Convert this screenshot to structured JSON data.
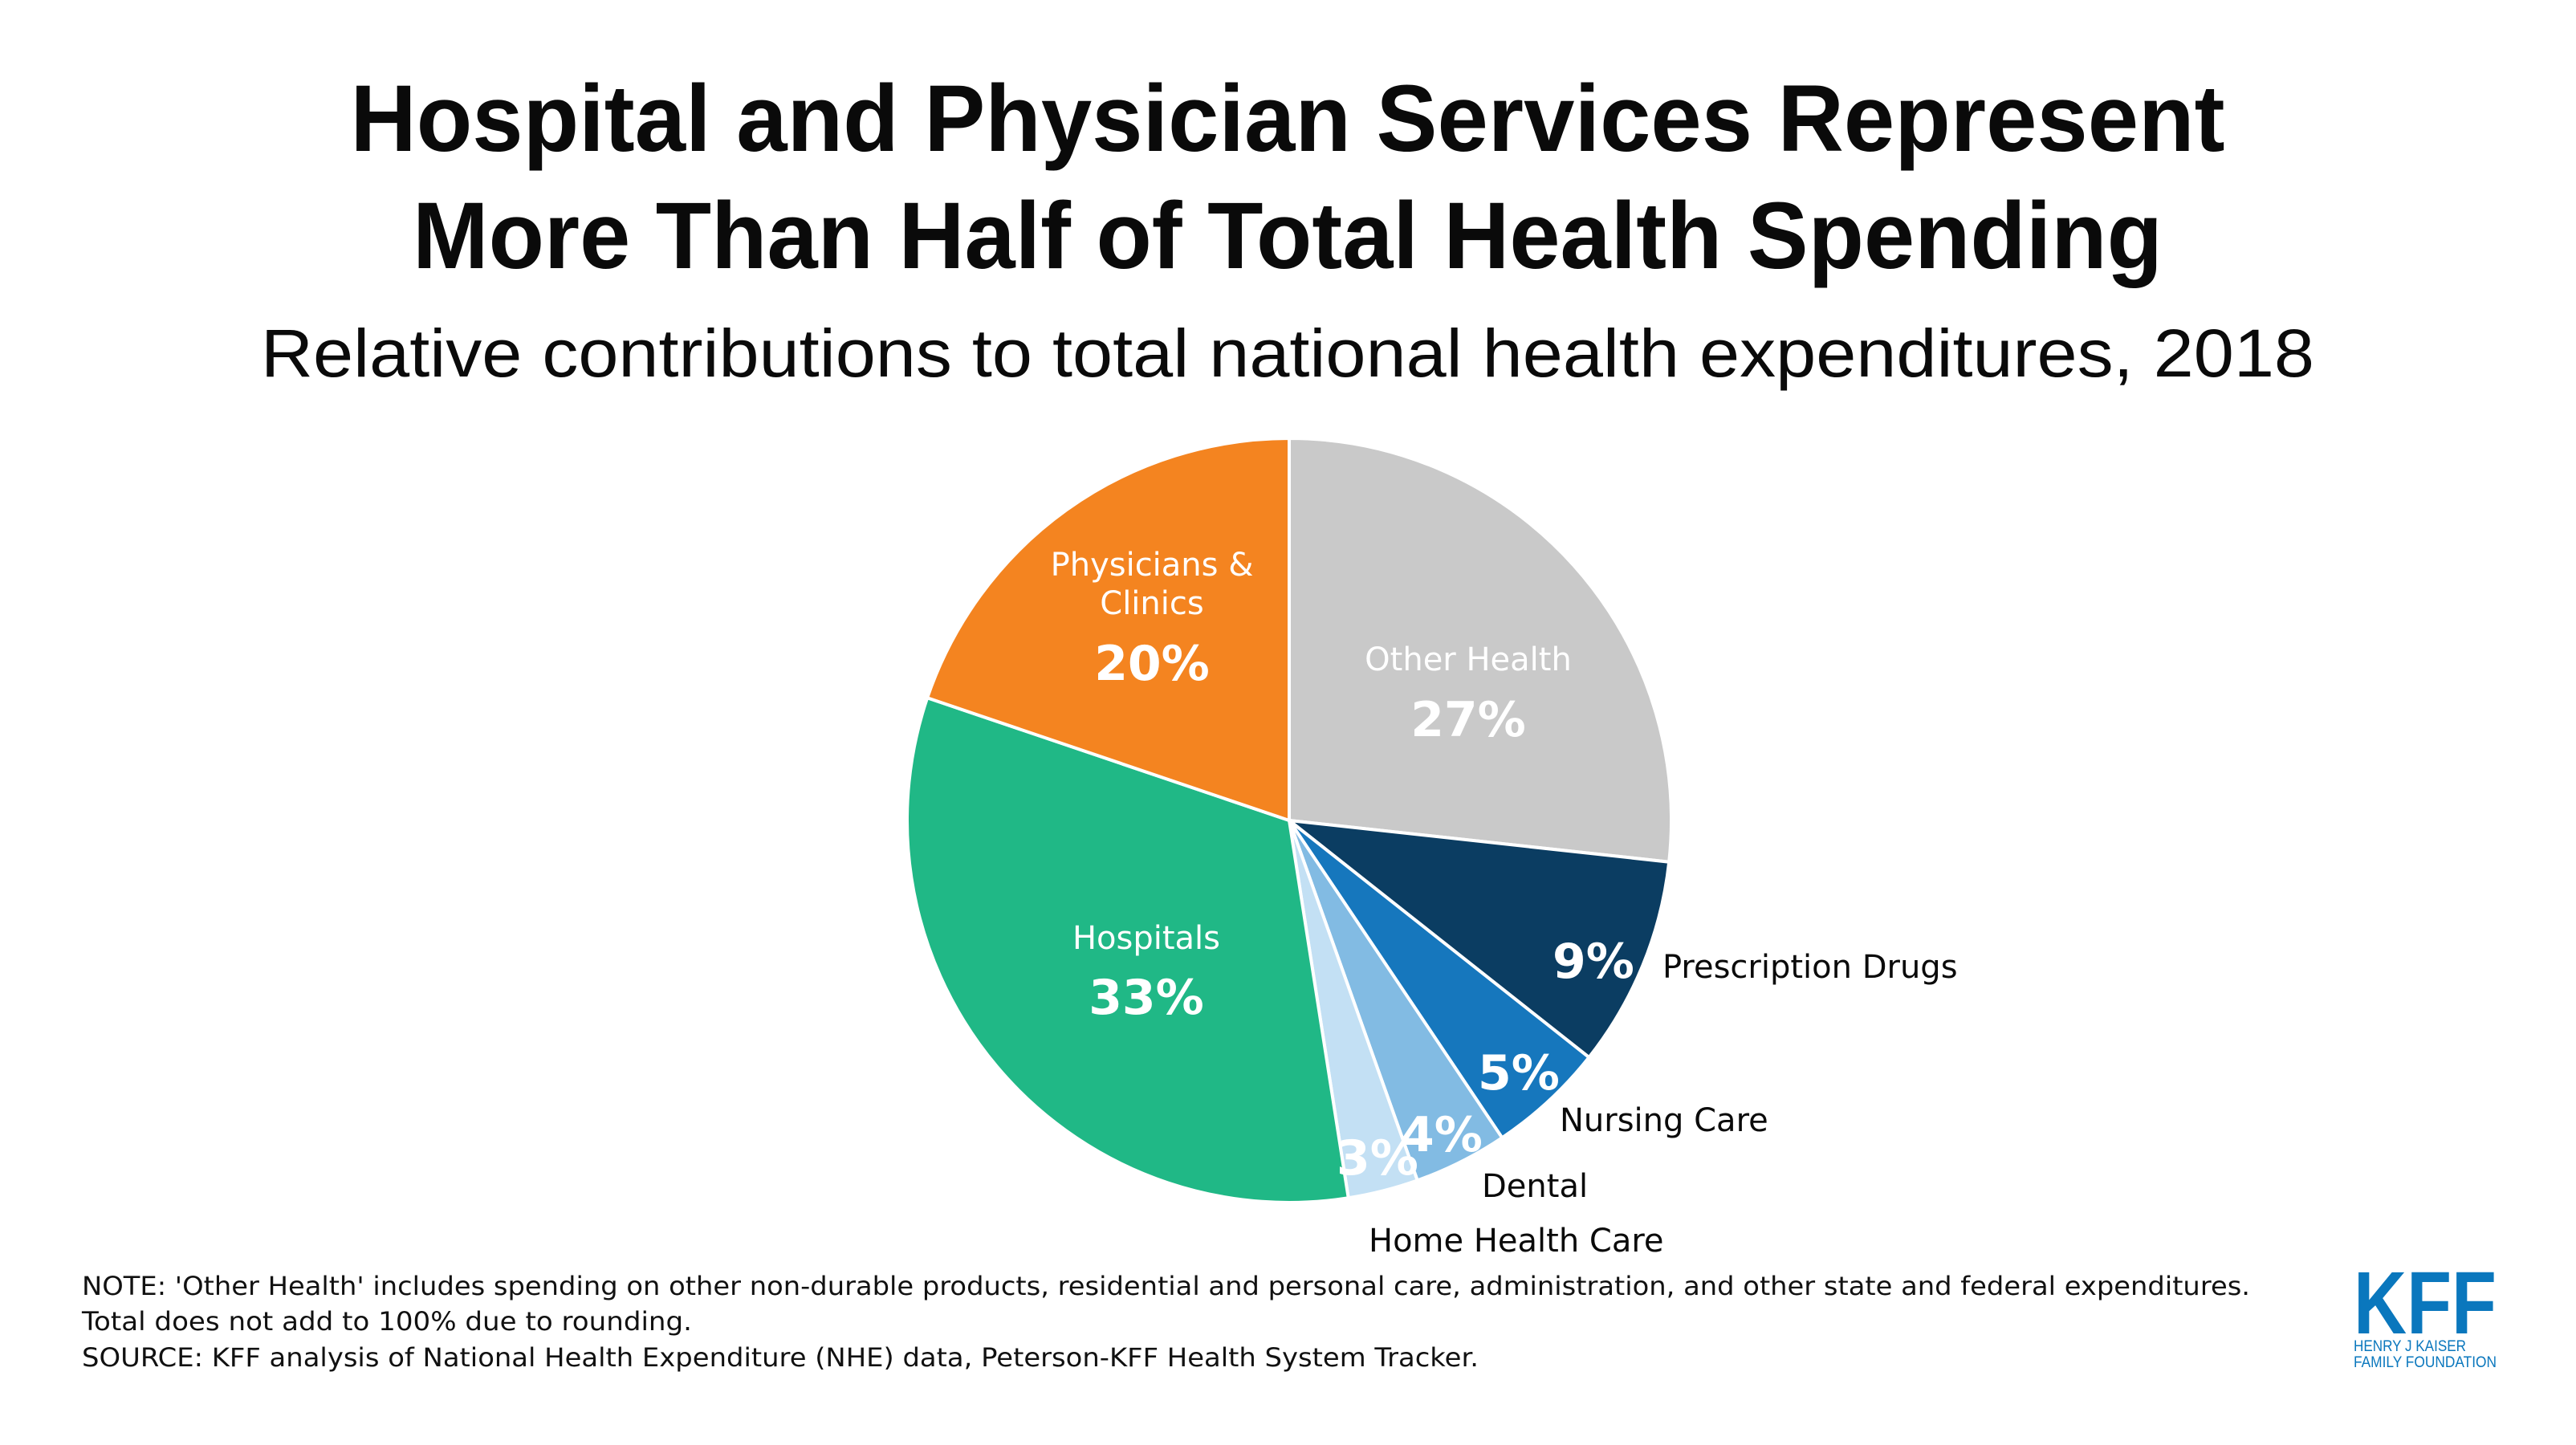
{
  "chart_data": {
    "type": "pie",
    "title": "Hospital and Physician Services Represent More Than Half of Total Health Spending",
    "title_lines": [
      "Hospital and Physician Services Represent",
      "More Than Half of Total Health Spending"
    ],
    "subtitle": "Relative contributions to total national health expenditures, 2018",
    "start": "top",
    "direction": "clockwise",
    "slices": [
      {
        "name": "Other Health",
        "value": 27,
        "label": "27%",
        "color": "#c9c9c9",
        "label_placement": "inside"
      },
      {
        "name": "Prescription Drugs",
        "value": 9,
        "label": "9%",
        "color": "#0b3d62",
        "label_placement": "outside"
      },
      {
        "name": "Nursing Care",
        "value": 5,
        "label": "5%",
        "color": "#1677bd",
        "label_placement": "outside"
      },
      {
        "name": "Dental",
        "value": 4,
        "label": "4%",
        "color": "#82bbe3",
        "label_placement": "outside"
      },
      {
        "name": "Home Health Care",
        "value": 3,
        "label": "3%",
        "color": "#c3e0f4",
        "label_placement": "outside"
      },
      {
        "name": "Hospitals",
        "value": 33,
        "label": "33%",
        "color": "#20b886",
        "label_placement": "inside"
      },
      {
        "name": "Physicians & Clinics",
        "name_lines": [
          "Physicians &",
          "Clinics"
        ],
        "value": 20,
        "label": "20%",
        "color": "#f48420",
        "label_placement": "inside"
      }
    ]
  },
  "footer": {
    "note_line1": "NOTE: 'Other Health' includes spending on other non-durable products, residential and personal care, administration, and other state and federal expenditures.",
    "note_line2": "Total does not add to 100% due to rounding.",
    "source": "SOURCE: KFF analysis of National Health Expenditure (NHE) data, Peterson-KFF Health System Tracker."
  },
  "logo": {
    "mark": "KFF",
    "line1": "HENRY J KAISER",
    "line2": "FAMILY FOUNDATION",
    "color": "#0a77bd"
  }
}
